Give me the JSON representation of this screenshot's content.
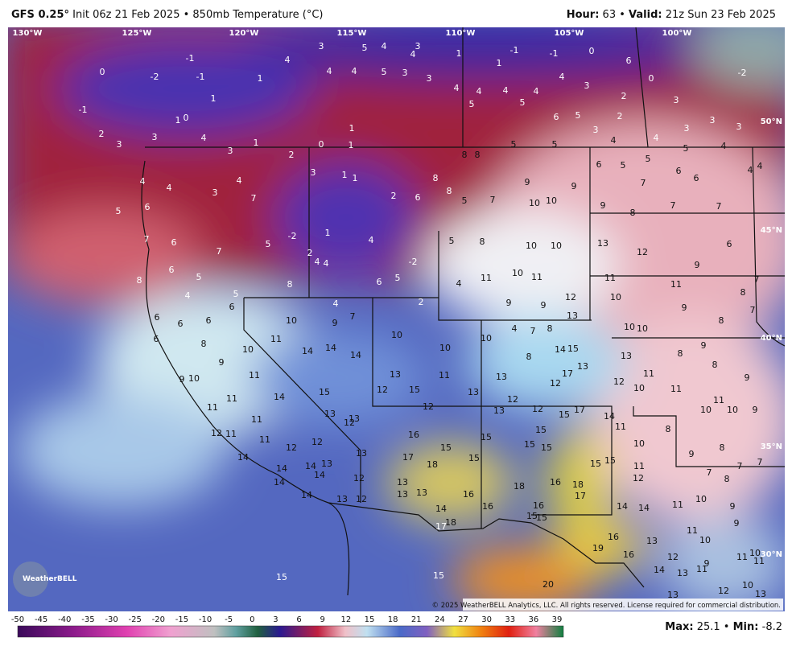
{
  "header": {
    "model": "GFS 0.25°",
    "init": "Init 06z 21 Feb 2025 • 850mb Temperature (°C)",
    "hour_label": "Hour:",
    "hour_value": "63 •",
    "valid_label": "Valid:",
    "valid_value": "21z Sun 23 Feb 2025"
  },
  "map": {
    "longitudes": [
      "130°W",
      "125°W",
      "120°W",
      "115°W",
      "110°W",
      "105°W",
      "100°W"
    ],
    "latitudes": [
      "50°N",
      "45°N",
      "40°N",
      "35°N",
      "30°N"
    ],
    "station_values": [
      3,
      5,
      4,
      3,
      4,
      4,
      4,
      4,
      5,
      3,
      3,
      4,
      4,
      4,
      4,
      4,
      3,
      2,
      3,
      5,
      5,
      6,
      5,
      2,
      3,
      3,
      3,
      3,
      5,
      5,
      4,
      4,
      5,
      4,
      1,
      1,
      -1,
      -1,
      0,
      6,
      0,
      -2,
      -1,
      -2,
      0,
      -1,
      1,
      1,
      -1,
      0,
      1,
      2,
      3,
      3,
      4,
      3,
      2,
      1,
      0,
      1,
      1,
      8,
      8,
      8,
      9,
      9,
      6,
      5,
      5,
      7,
      6,
      6,
      4,
      4,
      4,
      5,
      6,
      4,
      3,
      4,
      7,
      3,
      1,
      1,
      2,
      6,
      8,
      5,
      7,
      10,
      10,
      9,
      8,
      7,
      7,
      7,
      6,
      7,
      5,
      -2,
      1,
      4,
      2,
      4,
      4,
      -2,
      5,
      8,
      10,
      10,
      13,
      12,
      9,
      6,
      8,
      6,
      5,
      4,
      5,
      8,
      6,
      5,
      4,
      11,
      10,
      11,
      11,
      11,
      8,
      7,
      6,
      6,
      6,
      6,
      10,
      4,
      9,
      7,
      2,
      9,
      9,
      12,
      13,
      10,
      9,
      8,
      7,
      6,
      8,
      10,
      11,
      14,
      14,
      14,
      10,
      10,
      10,
      4,
      7,
      8,
      10,
      10,
      13,
      8,
      9,
      9,
      9,
      10,
      11,
      15,
      13,
      15,
      11,
      13,
      13,
      8,
      12,
      17,
      13,
      14,
      15,
      12,
      11,
      8,
      9,
      11,
      11,
      14,
      13,
      12,
      12,
      13,
      12,
      12,
      15,
      17,
      14,
      10,
      11,
      10,
      10,
      9,
      11,
      12,
      11,
      11,
      11,
      12,
      12,
      12,
      13,
      13,
      16,
      17,
      18,
      15,
      15,
      15,
      15,
      15,
      15,
      15,
      15,
      11,
      11,
      10,
      8,
      8,
      9,
      7,
      8,
      7,
      7,
      14,
      14,
      14,
      14,
      13,
      12,
      13,
      13,
      13,
      16,
      16,
      18,
      16,
      18,
      17,
      12,
      14,
      14,
      13,
      12,
      14,
      17,
      18,
      16,
      15,
      15,
      14,
      14,
      11,
      10,
      9,
      9,
      11,
      16,
      19,
      16,
      13,
      12,
      10,
      9,
      11,
      10,
      11,
      14,
      13,
      11,
      12,
      10,
      13,
      13,
      20,
      15,
      15
    ],
    "copyright": "© 2025 WeatherBELL Analytics, LLC. All rights reserved. License required for commercial distribution.",
    "logo": "WeatherBELL"
  },
  "legend": {
    "ticks": [
      -50,
      -45,
      -40,
      -35,
      -30,
      -25,
      -20,
      -15,
      -10,
      -5,
      0,
      3,
      6,
      9,
      12,
      15,
      18,
      21,
      24,
      27,
      30,
      33,
      36,
      39
    ]
  },
  "footer": {
    "max_label": "Max:",
    "max_value": "25.1 •",
    "min_label": "Min:",
    "min_value": "-8.2"
  }
}
